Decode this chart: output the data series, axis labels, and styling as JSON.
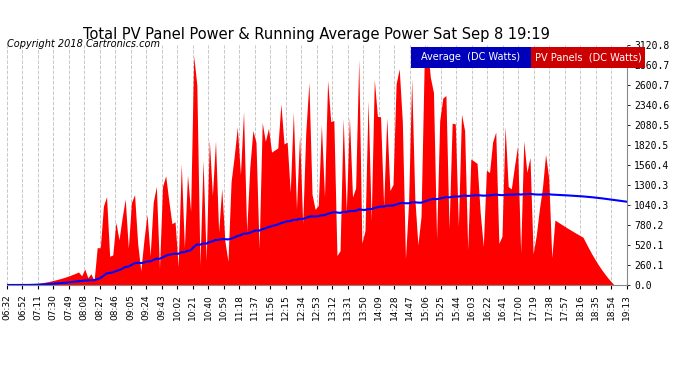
{
  "title": "Total PV Panel Power & Running Average Power Sat Sep 8 19:19",
  "copyright": "Copyright 2018 Cartronics.com",
  "ylabel_right_values": [
    0.0,
    260.1,
    520.1,
    780.2,
    1040.3,
    1300.3,
    1560.4,
    1820.5,
    2080.5,
    2340.6,
    2600.7,
    2860.7,
    3120.8
  ],
  "ylim": [
    0,
    3380
  ],
  "bg_color": "#ffffff",
  "plot_bg_color": "#ffffff",
  "grid_color": "#c8c8c8",
  "bar_color": "#ff0000",
  "avg_color": "#0000ff",
  "legend_avg_text": "Average  (DC Watts)",
  "legend_pv_text": "PV Panels  (DC Watts)",
  "legend_avg_bg": "#0000bb",
  "legend_pv_bg": "#cc0000",
  "xtick_labels": [
    "06:32",
    "06:52",
    "07:11",
    "07:30",
    "07:49",
    "08:08",
    "08:27",
    "08:46",
    "09:05",
    "09:24",
    "09:43",
    "10:02",
    "10:21",
    "10:40",
    "10:59",
    "11:18",
    "11:37",
    "11:56",
    "12:15",
    "12:34",
    "12:53",
    "13:12",
    "13:31",
    "13:50",
    "14:09",
    "14:28",
    "14:47",
    "15:06",
    "15:25",
    "15:44",
    "16:03",
    "16:22",
    "16:41",
    "17:00",
    "17:19",
    "17:38",
    "17:57",
    "18:16",
    "18:35",
    "18:54",
    "19:13"
  ],
  "num_points": 200
}
